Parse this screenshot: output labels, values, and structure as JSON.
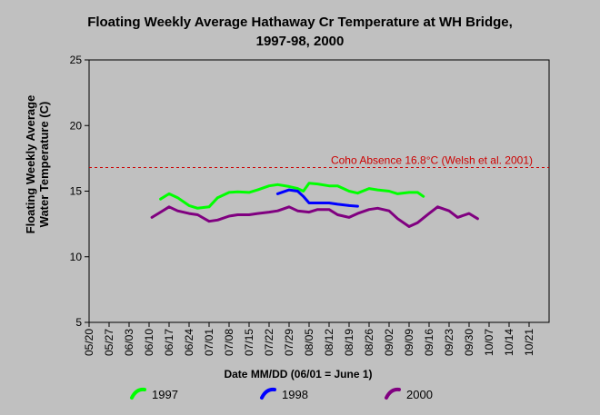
{
  "chart_data": {
    "type": "line",
    "title": [
      "Floating Weekly Average Hathaway Cr Temperature at WH Bridge,",
      "1997-98, 2000"
    ],
    "ylabel": [
      "Floating Weekly Average",
      "Water Temperature (C)"
    ],
    "xlabel": "Date MM/DD (06/01 = June 1)",
    "ylim": [
      5,
      25
    ],
    "yticks": [
      5,
      10,
      15,
      20,
      25
    ],
    "xtick_labels": [
      "05/20",
      "05/27",
      "06/03",
      "06/10",
      "06/17",
      "06/24",
      "07/01",
      "07/08",
      "07/15",
      "07/22",
      "07/29",
      "08/05",
      "08/12",
      "08/19",
      "08/26",
      "09/02",
      "09/09",
      "09/16",
      "09/23",
      "09/30",
      "10/07",
      "10/14",
      "10/21"
    ],
    "xlim": [
      "05/20",
      "10/28"
    ],
    "grid": false,
    "legend_position": "bottom",
    "reference_line": {
      "y": 16.8,
      "label": "Coho Absence 16.8°C (Welsh et al. 2001)",
      "color": "#cc0000",
      "style": "dashed"
    },
    "series": [
      {
        "name": "1997",
        "color": "#00ff00",
        "x": [
          "06/14",
          "06/17",
          "06/20",
          "06/24",
          "06/27",
          "07/01",
          "07/04",
          "07/08",
          "07/11",
          "07/15",
          "07/18",
          "07/22",
          "07/25",
          "07/29",
          "08/01",
          "08/03",
          "08/05",
          "08/08",
          "08/12",
          "08/15",
          "08/19",
          "08/22",
          "08/26",
          "08/29",
          "09/02",
          "09/05",
          "09/09",
          "09/12",
          "09/14"
        ],
        "y": [
          14.4,
          14.8,
          14.5,
          13.9,
          13.7,
          13.8,
          14.5,
          14.9,
          14.95,
          14.9,
          15.1,
          15.4,
          15.5,
          15.35,
          15.2,
          15.0,
          15.6,
          15.55,
          15.4,
          15.4,
          15.0,
          14.85,
          15.2,
          15.1,
          15.0,
          14.8,
          14.9,
          14.9,
          14.6
        ]
      },
      {
        "name": "1998",
        "color": "#0000ff",
        "x": [
          "07/25",
          "07/29",
          "08/01",
          "08/03",
          "08/05",
          "08/08",
          "08/12",
          "08/15",
          "08/19",
          "08/22"
        ],
        "y": [
          14.8,
          15.1,
          15.0,
          14.6,
          14.1,
          14.1,
          14.1,
          14.0,
          13.9,
          13.85
        ]
      },
      {
        "name": "2000",
        "color": "#800080",
        "x": [
          "06/11",
          "06/14",
          "06/17",
          "06/20",
          "06/24",
          "06/27",
          "07/01",
          "07/04",
          "07/08",
          "07/11",
          "07/15",
          "07/18",
          "07/22",
          "07/25",
          "07/29",
          "08/01",
          "08/05",
          "08/08",
          "08/12",
          "08/15",
          "08/19",
          "08/22",
          "08/26",
          "08/29",
          "09/02",
          "09/05",
          "09/09",
          "09/12",
          "09/16",
          "09/19",
          "09/23",
          "09/26",
          "09/30",
          "10/03"
        ],
        "y": [
          13.0,
          13.4,
          13.8,
          13.5,
          13.3,
          13.2,
          12.7,
          12.8,
          13.1,
          13.2,
          13.2,
          13.3,
          13.4,
          13.5,
          13.8,
          13.5,
          13.4,
          13.6,
          13.6,
          13.2,
          13.0,
          13.3,
          13.6,
          13.7,
          13.5,
          12.9,
          12.3,
          12.6,
          13.3,
          13.8,
          13.5,
          13.0,
          13.3,
          12.9
        ]
      }
    ]
  }
}
